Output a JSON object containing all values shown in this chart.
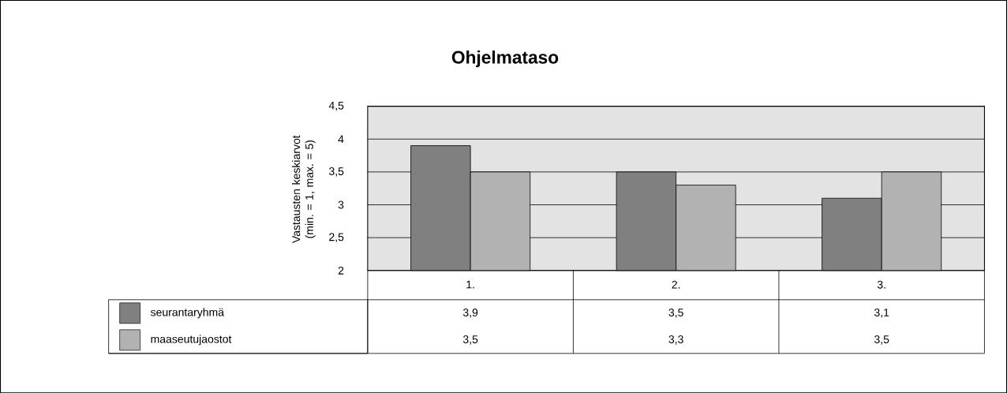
{
  "chart_data": {
    "type": "bar",
    "title": "Ohjelmataso",
    "ylabel": "Vastausten keskiarvot (min. = 1, max. = 5)",
    "categories": [
      "1.",
      "2.",
      "3."
    ],
    "series": [
      {
        "name": "seurantaryhmä",
        "color": "#808080",
        "values": [
          3.9,
          3.5,
          3.1
        ],
        "value_labels": [
          "3,9",
          "3,5",
          "3,1"
        ]
      },
      {
        "name": "maaseutujaostot",
        "color": "#b2b2b2",
        "values": [
          3.5,
          3.3,
          3.5
        ],
        "value_labels": [
          "3,5",
          "3,3",
          "3,5"
        ]
      }
    ],
    "ylim": [
      2,
      4.5
    ],
    "yticks": [
      2,
      {
        "value": 2.5,
        "label": "2,5"
      },
      3,
      {
        "value": 3.5,
        "label": "3,5"
      },
      4,
      {
        "value": 4.5,
        "label": "4,5"
      }
    ],
    "grid": "y",
    "legend": "bottom left"
  }
}
